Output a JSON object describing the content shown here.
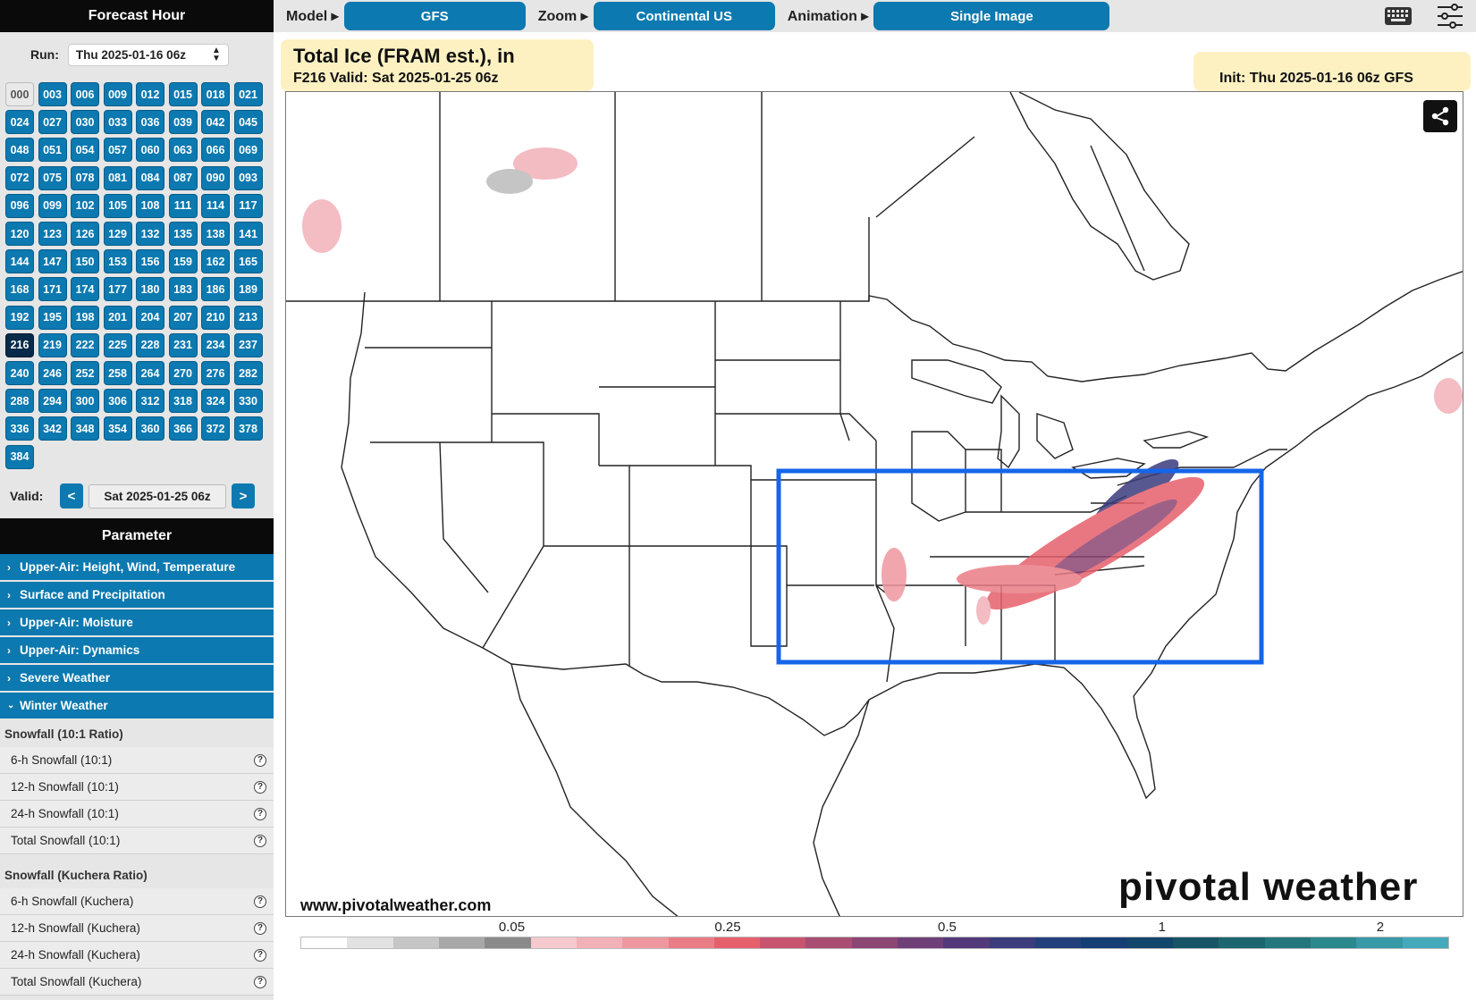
{
  "sidebar": {
    "forecast_header": "Forecast Hour",
    "run_label": "Run:",
    "run_value": "Thu 2025-01-16 06z",
    "hours": [
      "000",
      "003",
      "006",
      "009",
      "012",
      "015",
      "018",
      "021",
      "024",
      "027",
      "030",
      "033",
      "036",
      "039",
      "042",
      "045",
      "048",
      "051",
      "054",
      "057",
      "060",
      "063",
      "066",
      "069",
      "072",
      "075",
      "078",
      "081",
      "084",
      "087",
      "090",
      "093",
      "096",
      "099",
      "102",
      "105",
      "108",
      "111",
      "114",
      "117",
      "120",
      "123",
      "126",
      "129",
      "132",
      "135",
      "138",
      "141",
      "144",
      "147",
      "150",
      "153",
      "156",
      "159",
      "162",
      "165",
      "168",
      "171",
      "174",
      "177",
      "180",
      "183",
      "186",
      "189",
      "192",
      "195",
      "198",
      "201",
      "204",
      "207",
      "210",
      "213",
      "216",
      "219",
      "222",
      "225",
      "228",
      "231",
      "234",
      "237",
      "240",
      "246",
      "252",
      "258",
      "264",
      "270",
      "276",
      "282",
      "288",
      "294",
      "300",
      "306",
      "312",
      "318",
      "324",
      "330",
      "336",
      "342",
      "348",
      "354",
      "360",
      "366",
      "372",
      "378",
      "384"
    ],
    "selected_hour": "216",
    "valid_label": "Valid:",
    "valid_value": "Sat 2025-01-25 06z",
    "prev_label": "<",
    "next_label": ">",
    "parameter_header": "Parameter",
    "categories": [
      "Upper-Air: Height, Wind, Temperature",
      "Surface and Precipitation",
      "Upper-Air: Moisture",
      "Upper-Air: Dynamics",
      "Severe Weather",
      "Winter Weather"
    ],
    "expanded_category": "Winter Weather",
    "groups": [
      {
        "title": "Snowfall (10:1 Ratio)",
        "items": [
          "6-h Snowfall (10:1)",
          "12-h Snowfall (10:1)",
          "24-h Snowfall (10:1)",
          "Total Snowfall (10:1)"
        ]
      },
      {
        "title": "Snowfall (Kuchera Ratio)",
        "items": [
          "6-h Snowfall (Kuchera)",
          "12-h Snowfall (Kuchera)",
          "24-h Snowfall (Kuchera)",
          "Total Snowfall (Kuchera)"
        ]
      }
    ],
    "help_glyph": "?"
  },
  "topbar": {
    "model_label": "Model ▸",
    "model_value": "GFS",
    "zoom_label": "Zoom ▸",
    "zoom_value": "Continental US",
    "animation_label": "Animation ▸",
    "animation_value": "Single Image",
    "icons": [
      "keyboard-icon",
      "sliders-icon"
    ]
  },
  "map": {
    "title": "Total Ice (FRAM est.), in",
    "subtitle": "F216 Valid: Sat 2025-01-25 06z",
    "init": "Init: Thu 2025-01-16 06z GFS",
    "website": "www.pivotalweather.com",
    "brand": "pivotal weather",
    "highlight_color": "#1565e8",
    "share_icon": "share-icon"
  },
  "scale": {
    "ticks": [
      "0.05",
      "0.25",
      "0.5",
      "1",
      "2"
    ],
    "colors": [
      "#ffffff",
      "#e2e2e2",
      "#c6c6c6",
      "#a8a8a8",
      "#8a8a8a",
      "#f6c9cf",
      "#f2b0b8",
      "#ee979f",
      "#ea7c86",
      "#e6606c",
      "#c85470",
      "#a94d72",
      "#8c4674",
      "#6f4078",
      "#533a7a",
      "#3a3c7c",
      "#23407c",
      "#153f74",
      "#13466c",
      "#175566",
      "#1d6670",
      "#23777c",
      "#2b888c",
      "#3799a6",
      "#45a9bc"
    ]
  }
}
